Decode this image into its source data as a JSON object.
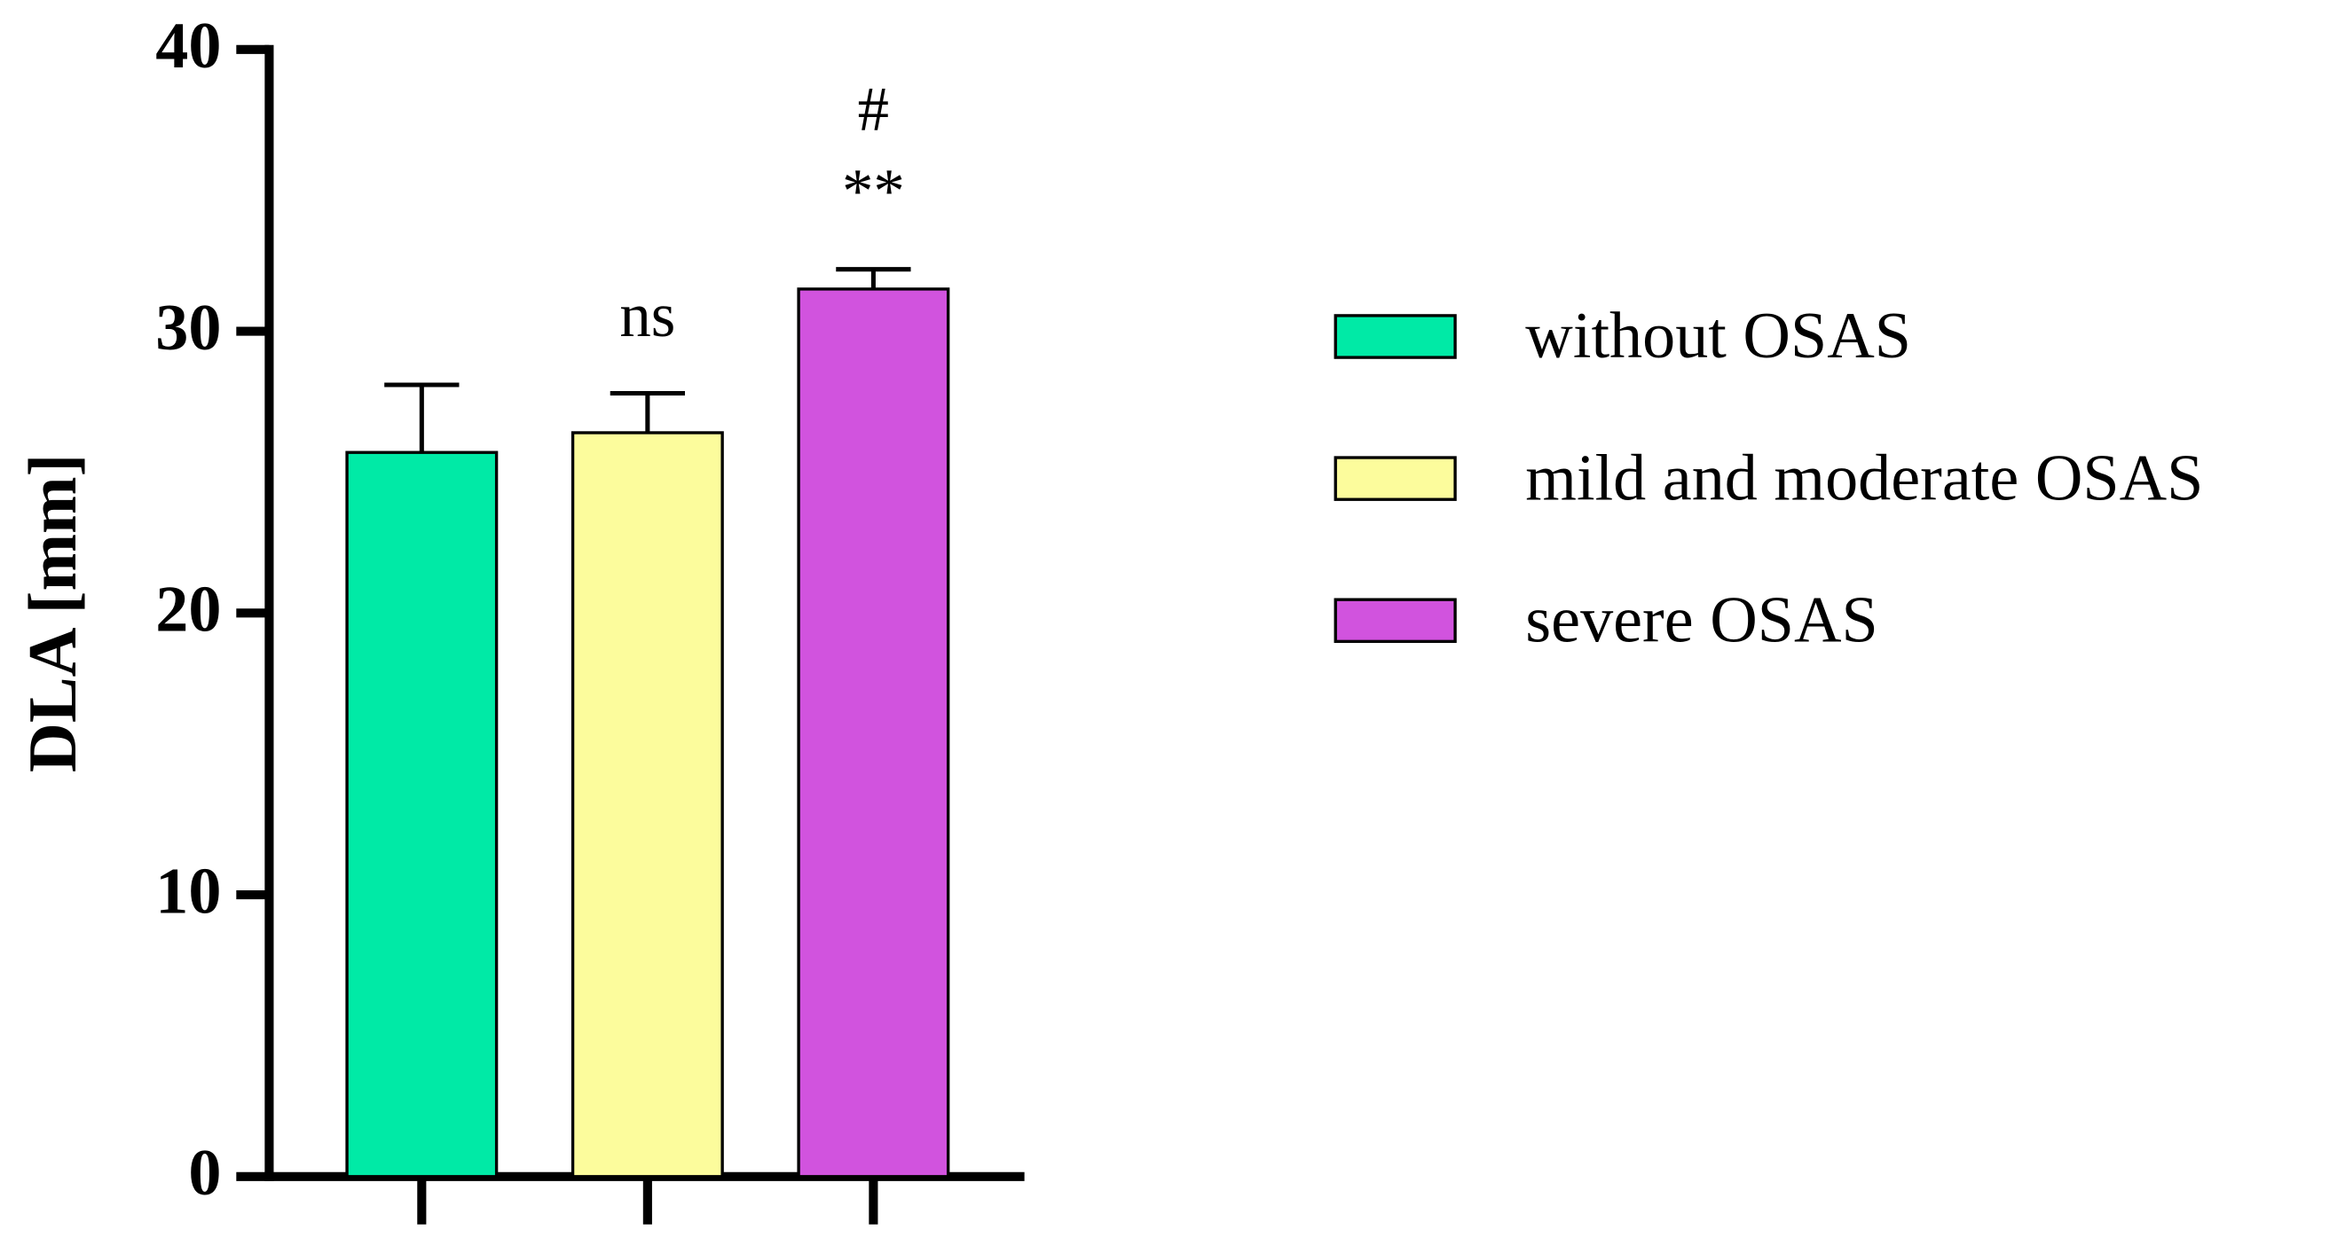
{
  "chart_data": {
    "type": "bar",
    "y_label": "DLA [mm]",
    "categories": [
      null,
      null,
      null
    ],
    "series": [
      {
        "name": "without OSAS",
        "color": "#00eaa6",
        "values": [
          25.7,
          null,
          null
        ],
        "errors": [
          2.4,
          null,
          null
        ]
      },
      {
        "name": "mild and moderate OSAS",
        "color": "#fcfc9c",
        "values": [
          null,
          26.4,
          null
        ],
        "errors": [
          null,
          1.4,
          null
        ],
        "annotations": [
          "ns"
        ]
      },
      {
        "name": "severe OSAS",
        "color": "#d153de",
        "values": [
          null,
          null,
          31.5
        ],
        "errors": [
          null,
          null,
          0.7
        ],
        "annotations": [
          "**",
          "#"
        ]
      }
    ],
    "ylim": [
      0,
      40
    ],
    "yticks": [
      0,
      10,
      20,
      30,
      40
    ],
    "grid": false,
    "legend": "right"
  }
}
